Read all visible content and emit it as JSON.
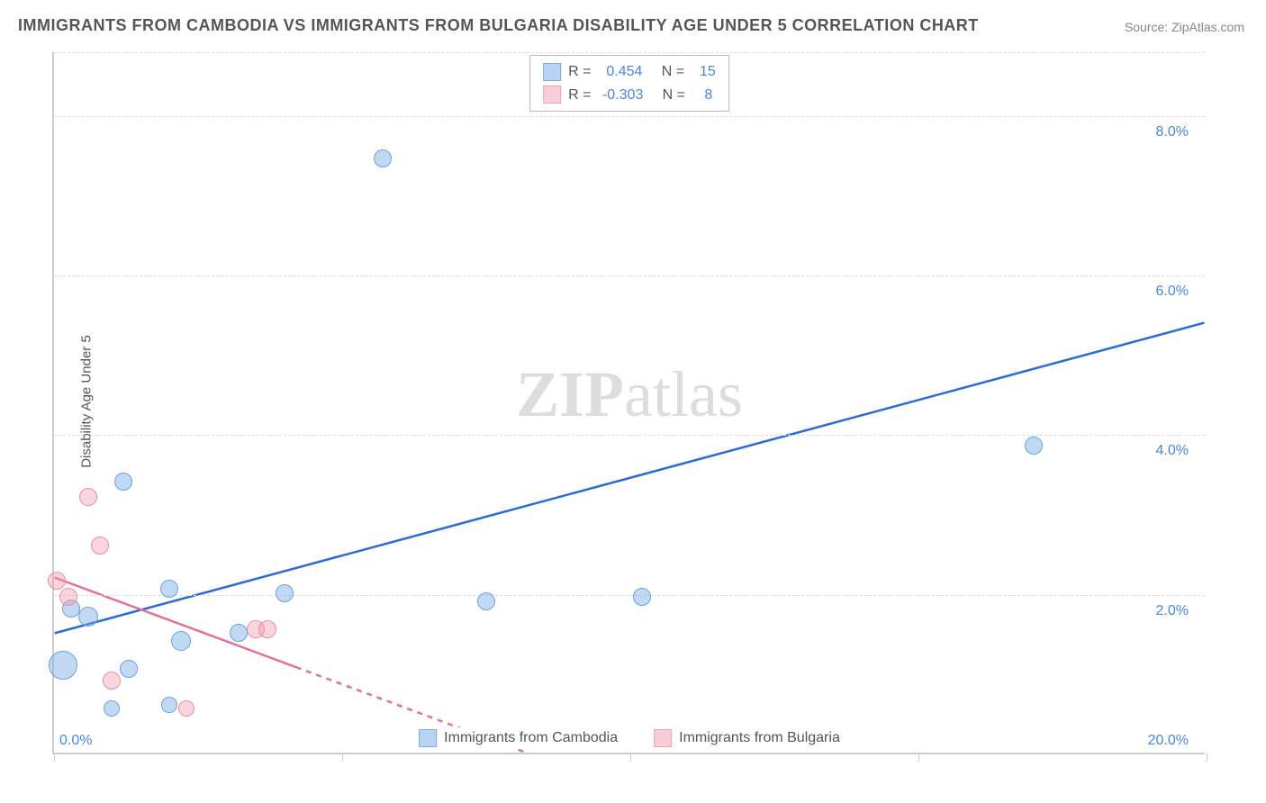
{
  "title": "IMMIGRANTS FROM CAMBODIA VS IMMIGRANTS FROM BULGARIA DISABILITY AGE UNDER 5 CORRELATION CHART",
  "source": "Source: ZipAtlas.com",
  "ylabel": "Disability Age Under 5",
  "watermark_prefix": "ZIP",
  "watermark_suffix": "atlas",
  "chart": {
    "type": "scatter",
    "xlim": [
      0,
      20
    ],
    "ylim": [
      0,
      8.8
    ],
    "x_ticks": [
      0,
      5,
      10,
      15,
      20
    ],
    "x_tick_labels": [
      "0.0%",
      "",
      "",
      "",
      "20.0%"
    ],
    "y_gridlines": [
      2,
      4,
      6,
      8,
      8.8
    ],
    "y_tick_labels": {
      "2": "2.0%",
      "4": "4.0%",
      "6": "6.0%",
      "8": "8.0%"
    },
    "grid_color": "#dddddd",
    "axis_color": "#cccccc",
    "background_color": "#ffffff"
  },
  "series": [
    {
      "name": "Immigrants from Cambodia",
      "fill": "rgba(120,170,230,0.45)",
      "stroke": "#6aa3e0",
      "line_color": "#2b6cd4",
      "swatch_fill": "#b9d4f2",
      "swatch_border": "#7aaee6",
      "R": "0.454",
      "N": "15",
      "trend": {
        "x1": 0,
        "y1": 1.5,
        "x2": 20,
        "y2": 5.4,
        "dash": false
      },
      "points": [
        {
          "x": 0.3,
          "y": 1.8,
          "r": 10
        },
        {
          "x": 0.6,
          "y": 1.7,
          "r": 11
        },
        {
          "x": 0.15,
          "y": 1.1,
          "r": 16
        },
        {
          "x": 1.2,
          "y": 3.4,
          "r": 10
        },
        {
          "x": 1.3,
          "y": 1.05,
          "r": 10
        },
        {
          "x": 1.0,
          "y": 0.55,
          "r": 9
        },
        {
          "x": 2.0,
          "y": 0.6,
          "r": 9
        },
        {
          "x": 2.2,
          "y": 1.4,
          "r": 11
        },
        {
          "x": 2.0,
          "y": 2.05,
          "r": 10
        },
        {
          "x": 3.2,
          "y": 1.5,
          "r": 10
        },
        {
          "x": 4.0,
          "y": 2.0,
          "r": 10
        },
        {
          "x": 5.7,
          "y": 7.45,
          "r": 10
        },
        {
          "x": 7.5,
          "y": 1.9,
          "r": 10
        },
        {
          "x": 10.2,
          "y": 1.95,
          "r": 10
        },
        {
          "x": 17.0,
          "y": 3.85,
          "r": 10
        }
      ]
    },
    {
      "name": "Immigrants from Bulgaria",
      "fill": "rgba(240,150,170,0.4)",
      "stroke": "#e98fa6",
      "line_color": "#e76f91",
      "swatch_fill": "#f8cdd7",
      "swatch_border": "#eda3b5",
      "R": "-0.303",
      "N": "8",
      "trend": {
        "x1": 0,
        "y1": 2.2,
        "x2": 8.2,
        "y2": 0,
        "dash_after_x": 4.2
      },
      "points": [
        {
          "x": 0.05,
          "y": 2.15,
          "r": 10
        },
        {
          "x": 0.25,
          "y": 1.95,
          "r": 10
        },
        {
          "x": 0.6,
          "y": 3.2,
          "r": 10
        },
        {
          "x": 0.8,
          "y": 2.6,
          "r": 10
        },
        {
          "x": 1.0,
          "y": 0.9,
          "r": 10
        },
        {
          "x": 2.3,
          "y": 0.55,
          "r": 9
        },
        {
          "x": 3.5,
          "y": 1.55,
          "r": 10
        },
        {
          "x": 3.7,
          "y": 1.55,
          "r": 10
        }
      ]
    }
  ],
  "bottom_legend": [
    {
      "label": "Immigrants from Cambodia",
      "fill": "#b9d4f2",
      "border": "#7aaee6"
    },
    {
      "label": "Immigrants from Bulgaria",
      "fill": "#f8cdd7",
      "border": "#eda3b5"
    }
  ]
}
